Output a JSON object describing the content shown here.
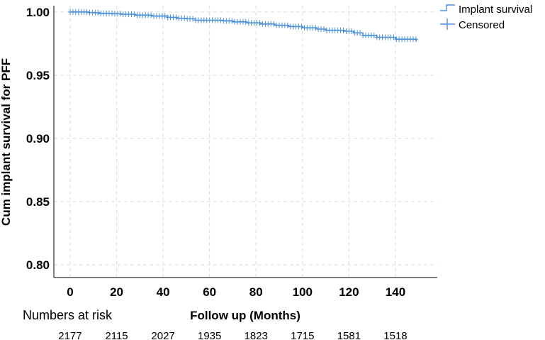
{
  "chart_data": {
    "type": "line",
    "title": "",
    "xlabel": "Follow up (Months)",
    "ylabel": "Cum implant survival for PFF",
    "xlim": [
      -7,
      158
    ],
    "ylim": [
      0.79,
      1.005
    ],
    "xticks": [
      0,
      20,
      40,
      60,
      80,
      100,
      120,
      140
    ],
    "yticks": [
      0.8,
      0.85,
      0.9,
      0.95,
      1.0
    ],
    "ytick_labels": [
      "0.80",
      "0.85",
      "0.90",
      "0.95",
      "1.00"
    ],
    "grid": true,
    "legend_position": "top-right",
    "legend": [
      {
        "label": "Implant survival",
        "marker": "step-line"
      },
      {
        "label": "Censored",
        "marker": "plus"
      }
    ],
    "series": [
      {
        "name": "Implant survival",
        "color": "#4a90d9",
        "x": [
          0,
          8,
          12,
          18,
          22,
          28,
          35,
          42,
          46,
          50,
          54,
          66,
          70,
          76,
          82,
          88,
          94,
          100,
          106,
          110,
          118,
          122,
          126,
          132,
          140,
          149
        ],
        "y": [
          1.0,
          0.9995,
          0.9989,
          0.9986,
          0.9982,
          0.9975,
          0.9968,
          0.9958,
          0.995,
          0.9946,
          0.9935,
          0.993,
          0.9922,
          0.9914,
          0.9905,
          0.9895,
          0.9885,
          0.9875,
          0.9865,
          0.9855,
          0.9848,
          0.9835,
          0.9815,
          0.98,
          0.9785,
          0.977
        ]
      }
    ],
    "numbers_at_risk": {
      "label": "Numbers at risk",
      "values": [
        "2177",
        "2115",
        "2027",
        "1935",
        "1823",
        "1715",
        "1581",
        "1518"
      ]
    }
  }
}
